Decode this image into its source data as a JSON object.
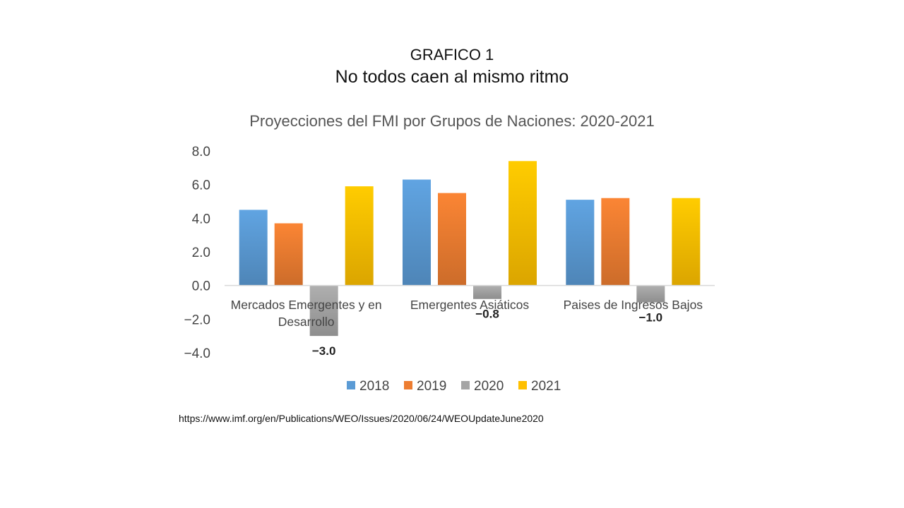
{
  "slide": {
    "title": "GRAFICO 1",
    "subtitle": "No todos caen al mismo ritmo",
    "source": "https://www.imf.org/en/Publications/WEO/Issues/2020/06/24/WEOUpdateJune2020"
  },
  "chart_data": {
    "type": "bar",
    "title": "Proyecciones del FMI por Grupos de Naciones: 2020-2021",
    "categories": [
      [
        "Mercados Emergentes y en",
        "Desarrollo"
      ],
      [
        "Emergentes Asiáticos"
      ],
      [
        "Paises de Ingresos Bajos"
      ]
    ],
    "series": [
      {
        "name": "2018",
        "values": [
          4.5,
          6.3,
          5.1
        ],
        "color": "#5B9BD5"
      },
      {
        "name": "2019",
        "values": [
          3.7,
          5.5,
          5.2
        ],
        "color": "#ED7D31"
      },
      {
        "name": "2020",
        "values": [
          -3.0,
          -0.8,
          -1.0
        ],
        "color": "#A5A5A5"
      },
      {
        "name": "2021",
        "values": [
          5.9,
          7.4,
          5.2
        ],
        "color": "#FFC000"
      }
    ],
    "data_labels": [
      {
        "series": "2020",
        "category_index": 0,
        "text": "−3.0"
      },
      {
        "series": "2020",
        "category_index": 1,
        "text": "−0.8"
      },
      {
        "series": "2020",
        "category_index": 2,
        "text": "−1.0"
      }
    ],
    "y_ticks": [
      "8.0",
      "6.0",
      "4.0",
      "2.0",
      "0.0",
      "−2.0",
      "−4.0"
    ],
    "y_tick_values": [
      8,
      6,
      4,
      2,
      0,
      -2,
      -4
    ],
    "ylim": [
      -4,
      8
    ],
    "grid": false,
    "legend_position": "bottom"
  }
}
